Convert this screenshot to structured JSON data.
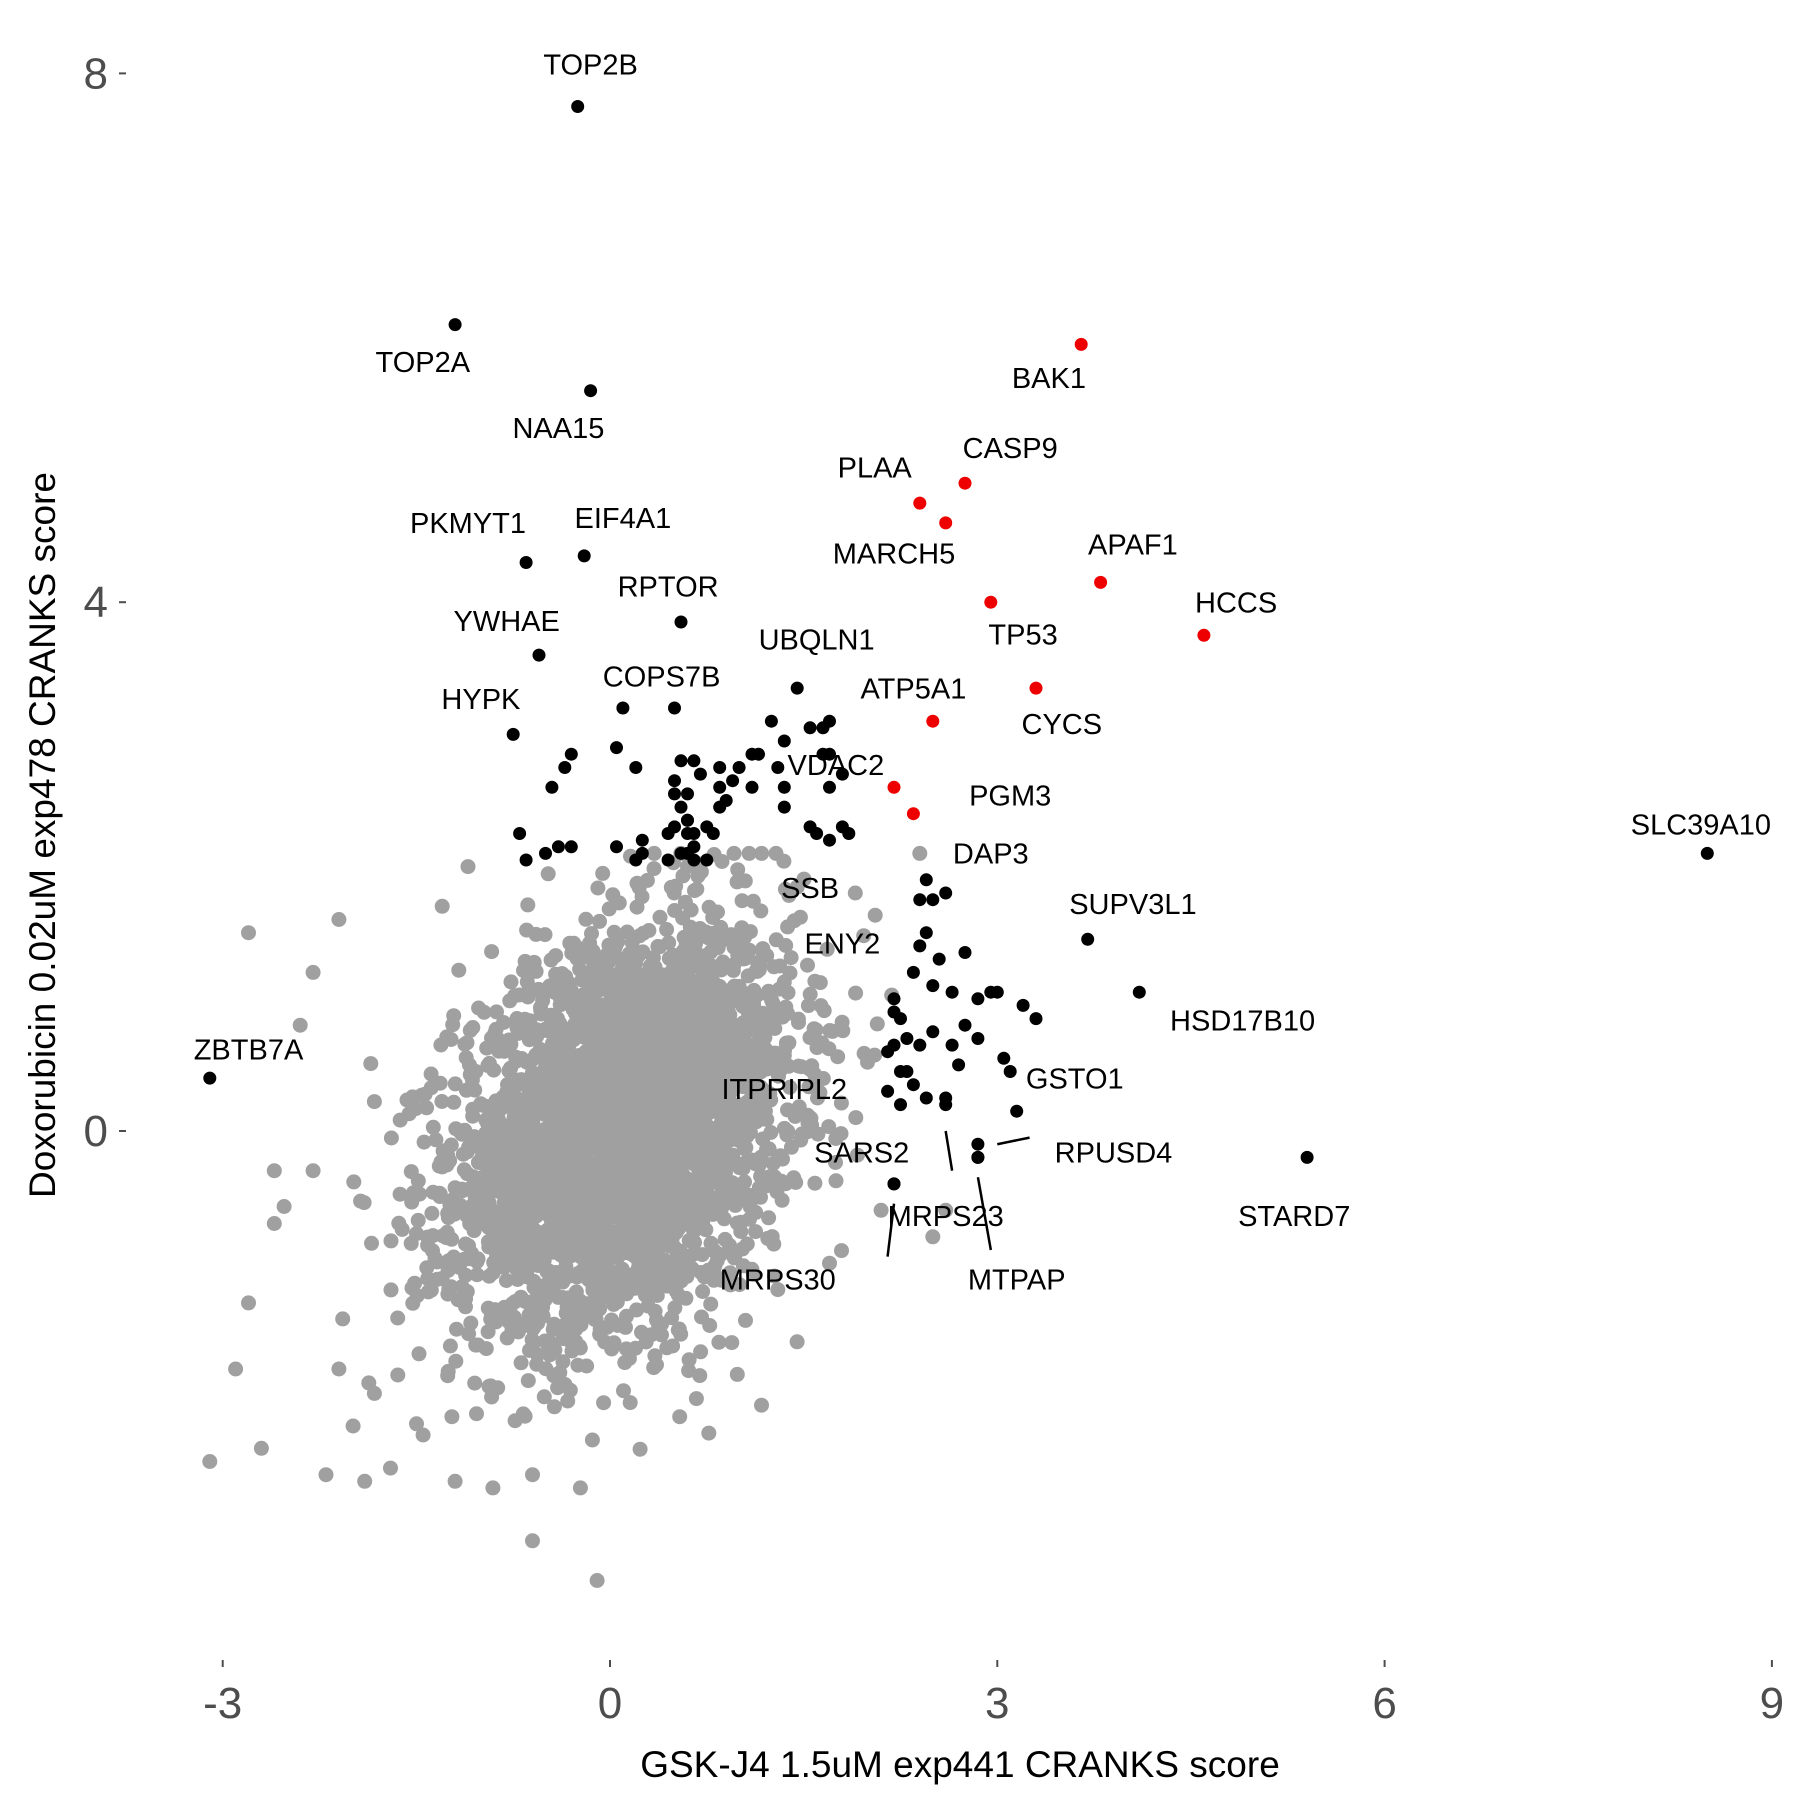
{
  "chart_data": {
    "type": "scatter",
    "xlabel": "GSK-J4 1.5uM exp441 CRANKS score",
    "ylabel": "Doxorubicin 0.02uM exp478 CRANKS score",
    "xlim": [
      -3.5,
      9.1
    ],
    "ylim": [
      -3.9,
      8.3
    ],
    "x_ticks": [
      "-3",
      "0",
      "3",
      "6",
      "9"
    ],
    "y_ticks": [
      "0",
      "4",
      "8"
    ],
    "grid": false,
    "legend": "none",
    "colors": {
      "background": "#a0a0a0",
      "hit": "#000000",
      "apoptosis": "#ee0000"
    },
    "background_cloud": {
      "n_points": 3600,
      "center": [
        0.1,
        0.0
      ],
      "sd": [
        0.65,
        0.75
      ],
      "correlation": 0.3,
      "outliers": [
        [
          -2.8,
          1.5
        ],
        [
          -2.6,
          -0.7
        ],
        [
          -2.9,
          -1.8
        ],
        [
          -2.7,
          -2.4
        ],
        [
          -3.1,
          -2.5
        ],
        [
          -2.2,
          -2.6
        ],
        [
          -1.9,
          -2.65
        ],
        [
          -1.7,
          -2.55
        ],
        [
          -1.2,
          -2.65
        ],
        [
          -0.6,
          -3.1
        ],
        [
          -0.1,
          -3.4
        ],
        [
          -0.6,
          -2.6
        ],
        [
          -2.4,
          0.8
        ],
        [
          -1.1,
          2.0
        ],
        [
          -1.3,
          1.7
        ],
        [
          -2.1,
          1.6
        ],
        [
          -2.3,
          1.2
        ],
        [
          -2.3,
          -0.3
        ],
        [
          -2.6,
          -0.3
        ],
        [
          -2.8,
          -1.3
        ],
        [
          -2.1,
          -1.8
        ],
        [
          0.6,
          2.0
        ],
        [
          1.9,
          1.8
        ],
        [
          2.6,
          -0.6
        ],
        [
          2.5,
          -0.8
        ],
        [
          2.1,
          -0.6
        ],
        [
          1.7,
          -1.0
        ],
        [
          1.3,
          -1.2
        ]
      ]
    },
    "series": [
      {
        "color_key": "hit",
        "points": [
          {
            "x": -0.25,
            "y": 7.75,
            "label": "TOP2B"
          },
          {
            "x": -1.2,
            "y": 6.1,
            "label": "TOP2A"
          },
          {
            "x": -0.15,
            "y": 5.6,
            "label": "NAA15"
          },
          {
            "x": -0.65,
            "y": 4.3,
            "label": "PKMYT1"
          },
          {
            "x": -0.2,
            "y": 4.35,
            "label": "EIF4A1"
          },
          {
            "x": -0.55,
            "y": 3.6,
            "label": "YWHAE"
          },
          {
            "x": 0.55,
            "y": 3.85,
            "label": "RPTOR"
          },
          {
            "x": -0.75,
            "y": 3.0,
            "label": "HYPK"
          },
          {
            "x": 0.1,
            "y": 3.2,
            "label": "COPS7B"
          },
          {
            "x": 1.45,
            "y": 3.35,
            "label": "UBQLN1"
          },
          {
            "x": 2.45,
            "y": 1.9,
            "label": "DAP3"
          },
          {
            "x": 2.45,
            "y": 1.5,
            "label": "SSB"
          },
          {
            "x": 2.35,
            "y": 1.2,
            "label": "ENY2"
          },
          {
            "x": 3.7,
            "y": 1.45,
            "label": "SUPV3L1"
          },
          {
            "x": 4.1,
            "y": 1.05,
            "label": "HSD17B10"
          },
          {
            "x": 3.1,
            "y": 0.45,
            "label": "GSTO1"
          },
          {
            "x": 2.6,
            "y": 0.2,
            "label": "ITPRIPL2"
          },
          {
            "x": 2.85,
            "y": -0.1,
            "label": "RPUSD4"
          },
          {
            "x": 2.85,
            "y": -0.2,
            "label": "SARS2"
          },
          {
            "x": 2.2,
            "y": -0.4,
            "label": "MRPS23"
          },
          {
            "x": 2.85,
            "y": -0.2,
            "label": "MTPAP"
          },
          {
            "x": 2.2,
            "y": -0.4,
            "label": "MRPS30"
          },
          {
            "x": 5.4,
            "y": -0.2,
            "label": "STARD7"
          },
          {
            "x": 8.5,
            "y": 2.1,
            "label": "SLC39A10"
          },
          {
            "x": -3.1,
            "y": 0.4,
            "label": "ZBTB7A"
          },
          {
            "x": 0.5,
            "y": 3.2
          },
          {
            "x": 0.05,
            "y": 2.9
          },
          {
            "x": 0.2,
            "y": 2.75
          },
          {
            "x": -0.3,
            "y": 2.85
          },
          {
            "x": -0.35,
            "y": 2.75
          },
          {
            "x": -0.45,
            "y": 2.6
          },
          {
            "x": -0.7,
            "y": 2.25
          },
          {
            "x": -0.4,
            "y": 2.15
          },
          {
            "x": -0.3,
            "y": 2.15
          },
          {
            "x": 0.05,
            "y": 2.15
          },
          {
            "x": 0.25,
            "y": 2.2
          },
          {
            "x": 0.45,
            "y": 2.25
          },
          {
            "x": 0.5,
            "y": 2.55
          },
          {
            "x": 0.6,
            "y": 2.55
          },
          {
            "x": 0.65,
            "y": 2.8
          },
          {
            "x": 0.55,
            "y": 2.8
          },
          {
            "x": 0.7,
            "y": 2.7
          },
          {
            "x": 0.6,
            "y": 2.35
          },
          {
            "x": 0.65,
            "y": 2.25
          },
          {
            "x": 0.55,
            "y": 2.45
          },
          {
            "x": 0.65,
            "y": 2.15
          },
          {
            "x": 0.5,
            "y": 2.65
          },
          {
            "x": 0.85,
            "y": 2.75
          },
          {
            "x": 0.85,
            "y": 2.6
          },
          {
            "x": 0.95,
            "y": 2.65
          },
          {
            "x": 1.0,
            "y": 2.75
          },
          {
            "x": 1.1,
            "y": 2.85
          },
          {
            "x": 1.15,
            "y": 2.85
          },
          {
            "x": 1.1,
            "y": 2.6
          },
          {
            "x": 1.25,
            "y": 3.1
          },
          {
            "x": 1.35,
            "y": 2.95
          },
          {
            "x": 1.3,
            "y": 2.75
          },
          {
            "x": 1.35,
            "y": 2.6
          },
          {
            "x": 1.35,
            "y": 2.45
          },
          {
            "x": 1.55,
            "y": 3.05
          },
          {
            "x": 1.65,
            "y": 3.05
          },
          {
            "x": 1.7,
            "y": 3.1
          },
          {
            "x": 1.65,
            "y": 2.85
          },
          {
            "x": 1.7,
            "y": 2.85
          },
          {
            "x": 1.7,
            "y": 2.6
          },
          {
            "x": 1.55,
            "y": 2.3
          },
          {
            "x": 1.7,
            "y": 2.2
          },
          {
            "x": 1.8,
            "y": 2.3
          },
          {
            "x": 1.85,
            "y": 2.25
          },
          {
            "x": 1.8,
            "y": 2.7
          },
          {
            "x": 0.85,
            "y": 2.45
          },
          {
            "x": 0.9,
            "y": 2.5
          },
          {
            "x": 2.4,
            "y": 1.75
          },
          {
            "x": 2.5,
            "y": 1.75
          },
          {
            "x": 2.6,
            "y": 1.8
          },
          {
            "x": 2.4,
            "y": 1.4
          },
          {
            "x": 2.55,
            "y": 1.3
          },
          {
            "x": 2.5,
            "y": 1.1
          },
          {
            "x": 2.65,
            "y": 1.05
          },
          {
            "x": 2.75,
            "y": 1.35
          },
          {
            "x": 2.85,
            "y": 1.0
          },
          {
            "x": 2.95,
            "y": 1.05
          },
          {
            "x": 3.0,
            "y": 1.05
          },
          {
            "x": 3.2,
            "y": 0.95
          },
          {
            "x": 3.3,
            "y": 0.85
          },
          {
            "x": 2.2,
            "y": 1.0
          },
          {
            "x": 2.25,
            "y": 0.85
          },
          {
            "x": 2.2,
            "y": 0.65
          },
          {
            "x": 2.25,
            "y": 0.45
          },
          {
            "x": 2.3,
            "y": 0.45
          },
          {
            "x": 2.35,
            "y": 0.35
          },
          {
            "x": 2.4,
            "y": 0.65
          },
          {
            "x": 2.5,
            "y": 0.75
          },
          {
            "x": 2.65,
            "y": 0.65
          },
          {
            "x": 2.75,
            "y": 0.8
          },
          {
            "x": 2.85,
            "y": 0.7
          },
          {
            "x": 2.7,
            "y": 0.5
          },
          {
            "x": 2.45,
            "y": 0.25
          },
          {
            "x": 2.6,
            "y": 0.25
          },
          {
            "x": 3.05,
            "y": 0.55
          },
          {
            "x": 3.15,
            "y": 0.15
          },
          {
            "x": 2.15,
            "y": 0.3
          },
          {
            "x": 2.25,
            "y": 0.2
          },
          {
            "x": 2.15,
            "y": 0.6
          },
          {
            "x": 2.3,
            "y": 0.7
          },
          {
            "x": 2.2,
            "y": 0.9
          },
          {
            "x": 1.6,
            "y": 2.25
          },
          {
            "x": -0.65,
            "y": 2.05
          },
          {
            "x": -0.5,
            "y": 2.1
          },
          {
            "x": 0.2,
            "y": 2.05
          },
          {
            "x": 0.6,
            "y": 2.1
          },
          {
            "x": 0.65,
            "y": 2.05
          },
          {
            "x": 0.55,
            "y": 2.1
          },
          {
            "x": 0.6,
            "y": 2.35
          },
          {
            "x": 0.75,
            "y": 2.05
          },
          {
            "x": 0.75,
            "y": 2.3
          },
          {
            "x": 0.8,
            "y": 2.25
          },
          {
            "x": 0.25,
            "y": 2.1
          },
          {
            "x": 0.45,
            "y": 2.05
          },
          {
            "x": 0.5,
            "y": 2.3
          },
          {
            "x": 0.6,
            "y": 2.25
          }
        ]
      },
      {
        "color_key": "apoptosis",
        "points": [
          {
            "x": 3.65,
            "y": 5.95,
            "label": "BAK1"
          },
          {
            "x": 2.75,
            "y": 4.9,
            "label": "CASP9"
          },
          {
            "x": 2.4,
            "y": 4.75,
            "label": "PLAA"
          },
          {
            "x": 2.6,
            "y": 4.6,
            "label": "MARCH5"
          },
          {
            "x": 3.8,
            "y": 4.15,
            "label": "APAF1"
          },
          {
            "x": 2.95,
            "y": 4.0,
            "label": "TP53"
          },
          {
            "x": 4.6,
            "y": 3.75,
            "label": "HCCS"
          },
          {
            "x": 3.3,
            "y": 3.35,
            "label": "CYCS"
          },
          {
            "x": 2.5,
            "y": 3.1,
            "label": "ATP5A1"
          },
          {
            "x": 2.2,
            "y": 2.6,
            "label": "VDAC2"
          },
          {
            "x": 2.35,
            "y": 2.4,
            "label": "PGM3"
          }
        ]
      }
    ],
    "labels": [
      {
        "text": "TOP2B",
        "lx": -0.15,
        "ly": 8.05
      },
      {
        "text": "TOP2A",
        "lx": -1.45,
        "ly": 5.8
      },
      {
        "text": "NAA15",
        "lx": -0.4,
        "ly": 5.3
      },
      {
        "text": "BAK1",
        "lx": 3.4,
        "ly": 5.68
      },
      {
        "text": "CASP9",
        "lx": 3.1,
        "ly": 5.15
      },
      {
        "text": "PLAA",
        "lx": 2.05,
        "ly": 5.0
      },
      {
        "text": "PKMYT1",
        "lx": -1.1,
        "ly": 4.58
      },
      {
        "text": "EIF4A1",
        "lx": 0.1,
        "ly": 4.62
      },
      {
        "text": "MARCH5",
        "lx": 2.2,
        "ly": 4.35
      },
      {
        "text": "APAF1",
        "lx": 4.05,
        "ly": 4.42
      },
      {
        "text": "RPTOR",
        "lx": 0.45,
        "ly": 4.1
      },
      {
        "text": "HCCS",
        "lx": 4.85,
        "ly": 3.98
      },
      {
        "text": "YWHAE",
        "lx": -0.8,
        "ly": 3.84
      },
      {
        "text": "TP53",
        "lx": 3.2,
        "ly": 3.74
      },
      {
        "text": "UBQLN1",
        "lx": 1.6,
        "ly": 3.7
      },
      {
        "text": "COPS7B",
        "lx": 0.4,
        "ly": 3.42
      },
      {
        "text": "ATP5A1",
        "lx": 2.35,
        "ly": 3.33
      },
      {
        "text": "HYPK",
        "lx": -1.0,
        "ly": 3.25
      },
      {
        "text": "CYCS",
        "lx": 3.5,
        "ly": 3.06
      },
      {
        "text": "VDAC2",
        "lx": 1.75,
        "ly": 2.75
      },
      {
        "text": "PGM3",
        "lx": 3.1,
        "ly": 2.52
      },
      {
        "text": "SLC39A10",
        "lx": 8.45,
        "ly": 2.3
      },
      {
        "text": "DAP3",
        "lx": 2.95,
        "ly": 2.08
      },
      {
        "text": "SSB",
        "lx": 1.55,
        "ly": 1.82
      },
      {
        "text": "SUPV3L1",
        "lx": 4.05,
        "ly": 1.7
      },
      {
        "text": "ENY2",
        "lx": 1.8,
        "ly": 1.4
      },
      {
        "text": "HSD17B10",
        "lx": 4.9,
        "ly": 0.82
      },
      {
        "text": "ZBTB7A",
        "lx": -2.8,
        "ly": 0.6
      },
      {
        "text": "GSTO1",
        "lx": 3.6,
        "ly": 0.38
      },
      {
        "text": "ITPRIPL2",
        "lx": 1.35,
        "ly": 0.3
      },
      {
        "text": "SARS2",
        "lx": 1.95,
        "ly": -0.18
      },
      {
        "text": "RPUSD4",
        "lx": 3.9,
        "ly": -0.18
      },
      {
        "text": "STARD7",
        "lx": 5.3,
        "ly": -0.66
      },
      {
        "text": "MRPS23",
        "lx": 2.6,
        "ly": -0.66
      },
      {
        "text": "MTPAP",
        "lx": 3.15,
        "ly": -1.14
      },
      {
        "text": "MRPS30",
        "lx": 1.3,
        "ly": -1.14
      }
    ],
    "leaders": [
      [
        2.6,
        0.0,
        2.65,
        -0.3
      ],
      [
        2.85,
        -0.35,
        2.95,
        -0.9
      ],
      [
        2.2,
        -0.55,
        2.15,
        -0.95
      ],
      [
        3.0,
        -0.1,
        3.25,
        -0.05
      ]
    ]
  }
}
